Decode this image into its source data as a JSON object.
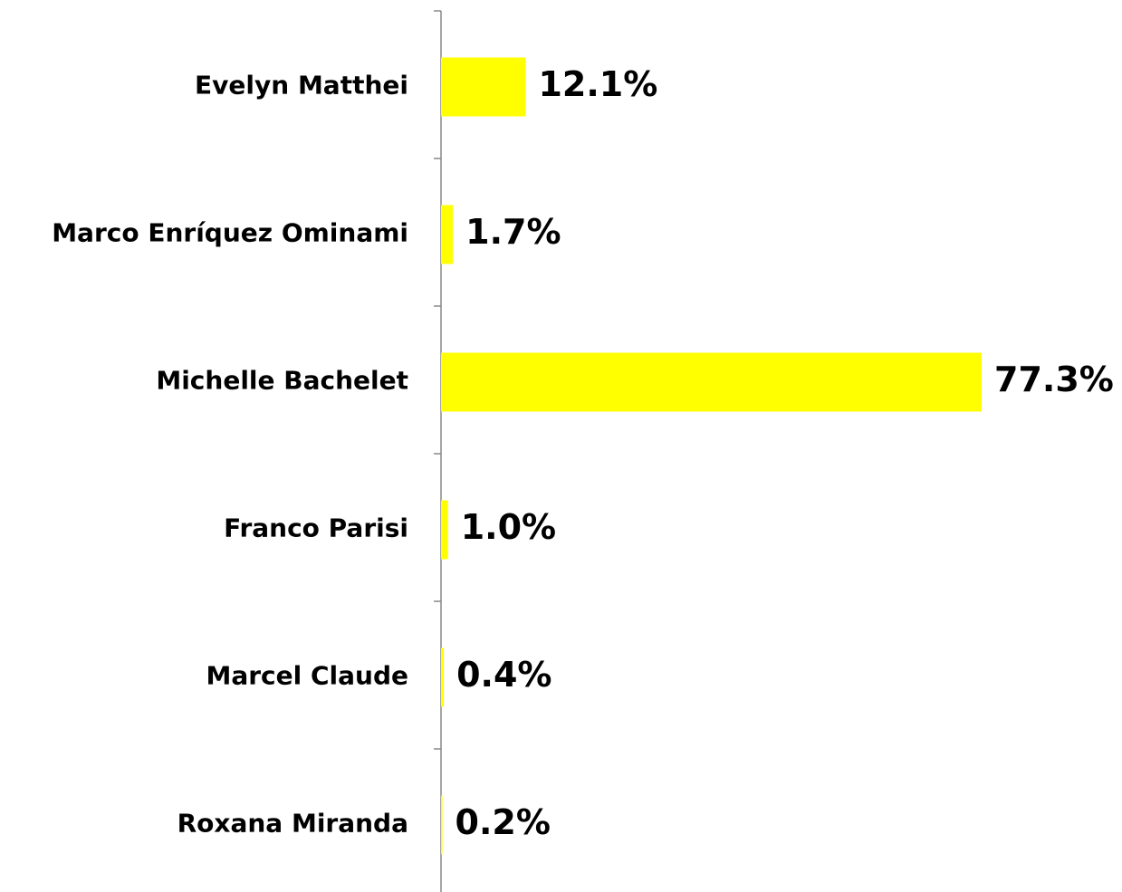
{
  "chart_data": {
    "type": "bar",
    "orientation": "horizontal",
    "categories": [
      "Evelyn Matthei",
      "Marco Enríquez Ominami",
      "Michelle Bachelet",
      "Franco Parisi",
      "Marcel Claude",
      "Roxana Miranda"
    ],
    "values": [
      12.1,
      1.7,
      77.3,
      1.0,
      0.4,
      0.2
    ],
    "value_labels": [
      "12.1%",
      "1.7%",
      "77.3%",
      "1.0%",
      "0.4%",
      "0.2%"
    ],
    "color": "#ffff00"
  }
}
